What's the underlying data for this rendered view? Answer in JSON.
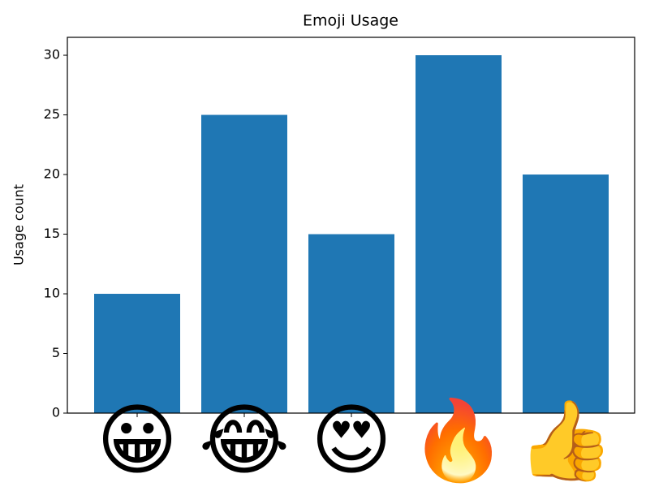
{
  "chart_data": {
    "type": "bar",
    "title": "Emoji Usage",
    "y_label": "Usage count",
    "categories": [
      "😀",
      "😂",
      "😍",
      "🔥",
      "👍"
    ],
    "values": [
      10,
      25,
      15,
      30,
      20
    ],
    "color": "#1f77b4",
    "ylim": [
      0,
      31.5
    ],
    "yticks": [
      0,
      5,
      10,
      15,
      20,
      25,
      30
    ],
    "grid": false
  }
}
